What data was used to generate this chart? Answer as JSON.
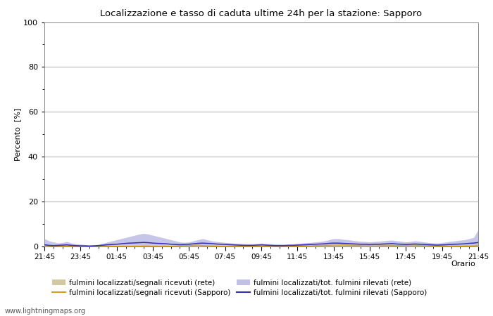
{
  "title": "Localizzazione e tasso di caduta ultime 24h per la stazione: Sapporo",
  "xlabel": "Orario",
  "ylabel": "Percento  [%]",
  "ylim": [
    0,
    100
  ],
  "yticks_major": [
    0,
    20,
    40,
    60,
    80,
    100
  ],
  "yticks_minor": [
    10,
    30,
    50,
    70,
    90
  ],
  "x_labels": [
    "21:45",
    "23:45",
    "01:45",
    "03:45",
    "05:45",
    "07:45",
    "09:45",
    "11:45",
    "13:45",
    "15:45",
    "17:45",
    "19:45",
    "21:45"
  ],
  "background_color": "#ffffff",
  "plot_bg_color": "#ffffff",
  "grid_major_color": "#aaaaaa",
  "grid_minor_color": "#cccccc",
  "watermark": "www.lightningmaps.org",
  "fill_rete_color": "#d4c8a0",
  "fill_sapporo_color": "#c0c0e8",
  "line_rete_color": "#d4a020",
  "line_sapporo_color": "#3030b0",
  "n_points": 97,
  "rete_fill": [
    0.5,
    0.3,
    0.2,
    0.4,
    0.3,
    0.2,
    0.1,
    0.1,
    0.2,
    0.1,
    0.2,
    0.3,
    0.5,
    0.6,
    0.7,
    0.5,
    0.4,
    0.3,
    0.2,
    0.3,
    0.4,
    0.5,
    0.6,
    0.4,
    0.3,
    0.2,
    0.1,
    0.2,
    0.3,
    0.5,
    0.6,
    0.7,
    0.8,
    0.9,
    1.0,
    0.8,
    0.7,
    0.6,
    0.5,
    0.4,
    0.3,
    0.2,
    0.3,
    0.2,
    0.3,
    0.3,
    0.2,
    0.2,
    0.2,
    0.2,
    0.2,
    0.2,
    0.2,
    0.3,
    0.3,
    0.4,
    0.5,
    0.5,
    0.6,
    0.7,
    0.7,
    0.8,
    0.9,
    1.0,
    1.1,
    1.2,
    1.3,
    1.2,
    1.1,
    1.0,
    1.1,
    1.2,
    1.3,
    1.4,
    1.3,
    1.2,
    1.1,
    1.0,
    0.9,
    1.0,
    1.1,
    1.2,
    1.2,
    1.1,
    1.0,
    0.9,
    0.8,
    0.7,
    0.6,
    0.5,
    0.4,
    0.3,
    0.3,
    0.4,
    0.5,
    0.7,
    1.0
  ],
  "sapporo_fill": [
    3.5,
    2.5,
    2.0,
    1.5,
    1.8,
    2.2,
    1.5,
    1.2,
    1.0,
    0.8,
    0.6,
    0.7,
    1.0,
    1.5,
    2.0,
    2.5,
    3.0,
    3.5,
    4.0,
    4.5,
    5.0,
    5.5,
    5.8,
    5.5,
    5.0,
    4.5,
    4.0,
    3.5,
    3.0,
    2.5,
    2.0,
    1.8,
    2.0,
    2.5,
    3.0,
    3.5,
    3.0,
    2.5,
    2.2,
    2.0,
    1.8,
    1.6,
    1.5,
    1.4,
    1.3,
    1.2,
    1.2,
    1.3,
    1.5,
    1.3,
    1.2,
    1.1,
    1.0,
    1.0,
    1.1,
    1.2,
    1.4,
    1.5,
    1.7,
    1.8,
    2.0,
    2.2,
    2.5,
    3.0,
    3.5,
    3.5,
    3.2,
    3.0,
    2.8,
    2.5,
    2.3,
    2.2,
    2.0,
    2.2,
    2.3,
    2.5,
    2.7,
    2.8,
    2.5,
    2.3,
    2.0,
    2.2,
    2.5,
    2.3,
    2.0,
    1.8,
    1.6,
    1.5,
    1.7,
    2.0,
    2.3,
    2.5,
    2.8,
    3.0,
    3.5,
    4.0,
    7.5
  ],
  "rete_line": [
    0.5,
    0.3,
    0.1,
    0.1,
    0.1,
    0.1,
    0.1,
    0.1,
    0.1,
    0.1,
    0.1,
    0.1,
    0.2,
    0.3,
    0.2,
    0.2,
    0.1,
    0.1,
    0.1,
    0.1,
    0.1,
    0.1,
    0.2,
    0.2,
    0.1,
    0.1,
    0.1,
    0.1,
    0.1,
    0.2,
    0.3,
    0.4,
    0.5,
    0.5,
    0.6,
    0.4,
    0.3,
    0.2,
    0.2,
    0.1,
    0.1,
    0.1,
    0.1,
    0.1,
    0.1,
    0.1,
    0.1,
    0.1,
    0.1,
    0.1,
    0.1,
    0.1,
    0.1,
    0.1,
    0.1,
    0.1,
    0.2,
    0.2,
    0.3,
    0.3,
    0.4,
    0.4,
    0.5,
    0.5,
    0.6,
    0.6,
    0.7,
    0.6,
    0.5,
    0.5,
    0.5,
    0.6,
    0.6,
    0.7,
    0.6,
    0.5,
    0.5,
    0.4,
    0.4,
    0.5,
    0.5,
    0.6,
    0.6,
    0.5,
    0.4,
    0.4,
    0.3,
    0.3,
    0.2,
    0.2,
    0.2,
    0.2,
    0.2,
    0.2,
    0.2,
    0.3,
    0.5
  ],
  "sapporo_line": [
    0.8,
    0.5,
    0.4,
    0.5,
    0.6,
    0.7,
    0.5,
    0.4,
    0.3,
    0.3,
    0.2,
    0.3,
    0.4,
    0.6,
    0.8,
    0.9,
    1.0,
    1.2,
    1.4,
    1.5,
    1.6,
    1.7,
    1.8,
    1.7,
    1.5,
    1.4,
    1.3,
    1.2,
    1.0,
    0.9,
    0.8,
    0.9,
    1.0,
    1.2,
    1.4,
    1.5,
    1.4,
    1.3,
    1.1,
    1.0,
    0.9,
    0.8,
    0.7,
    0.6,
    0.5,
    0.5,
    0.5,
    0.6,
    0.7,
    0.6,
    0.5,
    0.4,
    0.4,
    0.4,
    0.5,
    0.5,
    0.6,
    0.7,
    0.8,
    0.9,
    1.0,
    1.1,
    1.2,
    1.4,
    1.5,
    1.5,
    1.4,
    1.3,
    1.2,
    1.1,
    1.0,
    1.0,
    0.9,
    1.0,
    1.0,
    1.1,
    1.2,
    1.3,
    1.1,
    1.0,
    0.9,
    1.0,
    1.1,
    1.0,
    0.9,
    0.8,
    0.7,
    0.6,
    0.7,
    0.8,
    0.9,
    1.0,
    1.1,
    1.2,
    1.4,
    1.5,
    1.8
  ],
  "legend_labels": [
    "fulmini localizzati/segnali ricevuti (rete)",
    "fulmini localizzati/segnali ricevuti (Sapporo)",
    "fulmini localizzati/tot. fulmini rilevati (rete)",
    "fulmini localizzati/tot. fulmini rilevati (Sapporo)"
  ]
}
